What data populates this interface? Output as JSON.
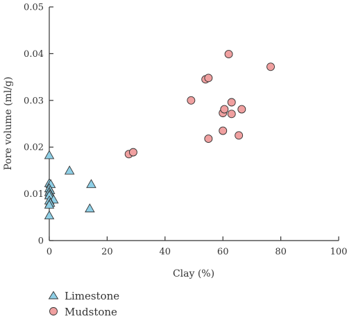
{
  "chart_data": {
    "type": "scatter",
    "xlabel": "Clay (%)",
    "ylabel": "Pore volume (ml/g)",
    "xlim": [
      0,
      100
    ],
    "ylim": [
      0,
      0.05
    ],
    "x_ticks": [
      0,
      20,
      40,
      60,
      80,
      100
    ],
    "y_ticks": [
      0,
      0.01,
      0.02,
      0.03,
      0.04,
      0.05
    ],
    "x_tick_labels": [
      "0",
      "20",
      "40",
      "60",
      "80",
      "100"
    ],
    "y_tick_labels": [
      "0",
      "0.01",
      "0.02",
      "0.03",
      "0.04",
      "0.05"
    ],
    "grid": false,
    "legend_position": "bottom-left",
    "series": [
      {
        "name": "Limestone",
        "marker": "triangle",
        "color": "#8ecfe6",
        "points": [
          {
            "x": 0.0,
            "y": 0.0183
          },
          {
            "x": 0.0,
            "y": 0.0123
          },
          {
            "x": 0.5,
            "y": 0.0121
          },
          {
            "x": 0.0,
            "y": 0.0112
          },
          {
            "x": 0.3,
            "y": 0.0108
          },
          {
            "x": 0.0,
            "y": 0.0104
          },
          {
            "x": 0.2,
            "y": 0.01
          },
          {
            "x": 0.0,
            "y": 0.0097
          },
          {
            "x": 1.5,
            "y": 0.0088
          },
          {
            "x": 0.0,
            "y": 0.0086
          },
          {
            "x": 0.3,
            "y": 0.0081
          },
          {
            "x": 0.0,
            "y": 0.0077
          },
          {
            "x": 0.0,
            "y": 0.0054
          },
          {
            "x": 7.0,
            "y": 0.015
          },
          {
            "x": 14.5,
            "y": 0.0121
          },
          {
            "x": 14.0,
            "y": 0.0069
          }
        ]
      },
      {
        "name": "Mudstone",
        "marker": "circle",
        "color": "#f0a0a0",
        "points": [
          {
            "x": 27.5,
            "y": 0.0185
          },
          {
            "x": 29.0,
            "y": 0.0189
          },
          {
            "x": 49.0,
            "y": 0.03
          },
          {
            "x": 54.0,
            "y": 0.0345
          },
          {
            "x": 55.0,
            "y": 0.0348
          },
          {
            "x": 55.0,
            "y": 0.0218
          },
          {
            "x": 60.0,
            "y": 0.0235
          },
          {
            "x": 60.0,
            "y": 0.0273
          },
          {
            "x": 60.5,
            "y": 0.0281
          },
          {
            "x": 62.0,
            "y": 0.0399
          },
          {
            "x": 63.0,
            "y": 0.0296
          },
          {
            "x": 63.0,
            "y": 0.0271
          },
          {
            "x": 65.5,
            "y": 0.0225
          },
          {
            "x": 66.5,
            "y": 0.0281
          },
          {
            "x": 76.5,
            "y": 0.0372
          }
        ]
      }
    ]
  }
}
